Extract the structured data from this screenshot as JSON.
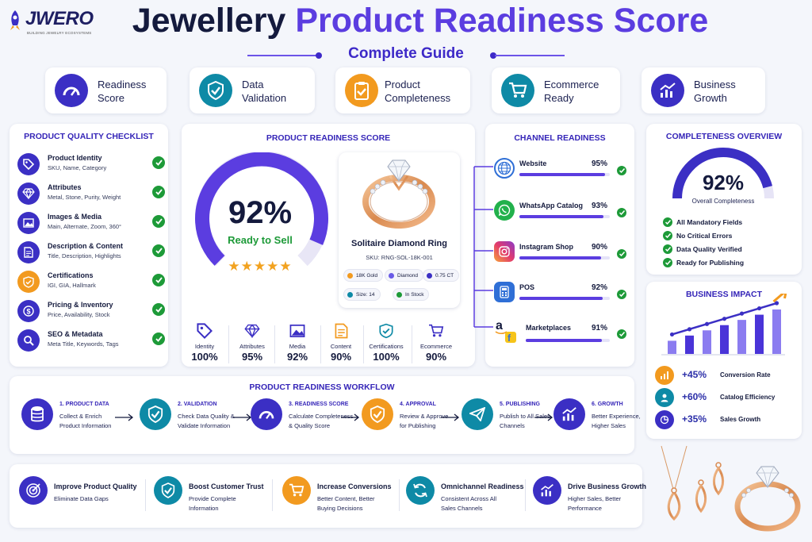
{
  "header": {
    "brand": "JWERO",
    "tagline": "BUILDING JEWELRY ECOSYSTEMS",
    "title_part1": "Jewellery",
    "title_part2": "Product Readiness Score",
    "subtitle": "Complete Guide"
  },
  "features": [
    {
      "label_line1": "Readiness",
      "label_line2": "Score",
      "icon": "gauge-icon",
      "color": "#3b2fc4"
    },
    {
      "label_line1": "Data",
      "label_line2": "Validation",
      "icon": "shield-check-icon",
      "color": "#0e8aa6"
    },
    {
      "label_line1": "Product",
      "label_line2": "Completeness",
      "icon": "clipboard-check-icon",
      "color": "#f29a1f"
    },
    {
      "label_line1": "Ecommerce",
      "label_line2": "Ready",
      "icon": "cart-icon",
      "color": "#0e8aa6"
    },
    {
      "label_line1": "Business",
      "label_line2": "Growth",
      "icon": "chart-up-icon",
      "color": "#3b2fc4"
    }
  ],
  "checklist": {
    "title": "PRODUCT QUALITY CHECKLIST",
    "items": [
      {
        "name": "Product Identity",
        "desc": "SKU, Name, Category",
        "icon": "tag-icon"
      },
      {
        "name": "Attributes",
        "desc": "Metal, Stone, Purity, Weight",
        "icon": "diamond-icon"
      },
      {
        "name": "Images & Media",
        "desc": "Main, Alternate, Zoom, 360°",
        "icon": "image-icon"
      },
      {
        "name": "Description & Content",
        "desc": "Title, Description, Highlights",
        "icon": "document-icon"
      },
      {
        "name": "Certifications",
        "desc": "IGI, GIA, Hallmark",
        "icon": "shield-icon"
      },
      {
        "name": "Pricing & Inventory",
        "desc": "Price, Availability, Stock",
        "icon": "dollar-icon"
      },
      {
        "name": "SEO & Metadata",
        "desc": "Meta Title, Keywords, Tags",
        "icon": "search-icon"
      }
    ]
  },
  "readiness": {
    "title": "PRODUCT READINESS SCORE",
    "score": "92%",
    "score_value": 92,
    "status": "Ready to Sell",
    "stars": 5,
    "product": {
      "name": "Solitaire Diamond Ring",
      "sku": "SKU: RNG-SOL-18K-001",
      "pills": [
        "18K Gold",
        "Diamond",
        "0.75 CT",
        "Size: 14",
        "In Stock"
      ]
    },
    "metrics": [
      {
        "label": "Identity",
        "value": "100%",
        "icon": "tag-icon"
      },
      {
        "label": "Attributes",
        "value": "95%",
        "icon": "diamond-icon"
      },
      {
        "label": "Media",
        "value": "92%",
        "icon": "image-icon"
      },
      {
        "label": "Content",
        "value": "90%",
        "icon": "document-icon"
      },
      {
        "label": "Certifications",
        "value": "100%",
        "icon": "shield-icon"
      },
      {
        "label": "Ecommerce",
        "value": "90%",
        "icon": "cart-icon"
      }
    ]
  },
  "channels": {
    "title": "CHANNEL READINESS",
    "items": [
      {
        "name": "Website",
        "pct": "95%",
        "value": 95,
        "icon": "globe-icon"
      },
      {
        "name": "WhatsApp Catalog",
        "pct": "93%",
        "value": 93,
        "icon": "whatsapp-icon"
      },
      {
        "name": "Instagram Shop",
        "pct": "90%",
        "value": 90,
        "icon": "instagram-icon"
      },
      {
        "name": "POS",
        "pct": "92%",
        "value": 92,
        "icon": "pos-icon"
      },
      {
        "name": "Marketplaces",
        "pct": "91%",
        "value": 91,
        "icon": "marketplace-icon"
      }
    ]
  },
  "completeness": {
    "title": "COMPLETENESS OVERVIEW",
    "score": "92%",
    "score_value": 92,
    "label": "Overall Completeness",
    "items": [
      "All Mandatory Fields",
      "No Critical Errors",
      "Data Quality Verified",
      "Ready for Publishing"
    ]
  },
  "impact": {
    "title": "BUSINESS IMPACT",
    "bars": [
      1,
      2,
      3,
      4,
      5,
      6,
      7
    ],
    "items": [
      {
        "value": "+45%",
        "label": "Conversion Rate",
        "icon": "chart-icon",
        "color": "#f29a1f"
      },
      {
        "value": "+60%",
        "label": "Catalog Efficiency",
        "icon": "user-icon",
        "color": "#0e8aa6"
      },
      {
        "value": "+35%",
        "label": "Sales Growth",
        "icon": "growth-icon",
        "color": "#3b2fc4"
      }
    ]
  },
  "workflow": {
    "title": "PRODUCT READINESS WORKFLOW",
    "steps": [
      {
        "title": "1. PRODUCT DATA",
        "l1": "Collect & Enrich",
        "l2": "Product Information",
        "icon": "database-icon",
        "color": "#3b2fc4"
      },
      {
        "title": "2. VALIDATION",
        "l1": "Check Data Quality &",
        "l2": "Validate Information",
        "icon": "shield-check-icon",
        "color": "#0e8aa6"
      },
      {
        "title": "3. READINESS SCORE",
        "l1": "Calculate Completeness",
        "l2": "& Quality Score",
        "icon": "gauge-icon",
        "color": "#3b2fc4"
      },
      {
        "title": "4. APPROVAL",
        "l1": "Review & Approve",
        "l2": "for Publishing",
        "icon": "approval-icon",
        "color": "#f29a1f"
      },
      {
        "title": "5. PUBLISHING",
        "l1": "Publish to All Sales",
        "l2": "Channels",
        "icon": "send-icon",
        "color": "#0e8aa6"
      },
      {
        "title": "6. GROWTH",
        "l1": "Better Experience,",
        "l2": "Higher Sales",
        "icon": "chart-up-icon",
        "color": "#3b2fc4"
      }
    ]
  },
  "benefits": [
    {
      "title": "Improve Product Quality",
      "l1": "Eliminate Data Gaps",
      "l2": "",
      "icon": "target-icon",
      "color": "#3b2fc4"
    },
    {
      "title": "Boost Customer Trust",
      "l1": "Provide Complete",
      "l2": "Information",
      "icon": "shield-check-icon",
      "color": "#0e8aa6"
    },
    {
      "title": "Increase Conversions",
      "l1": "Better Content, Better",
      "l2": "Buying Decisions",
      "icon": "cart-icon",
      "color": "#f29a1f"
    },
    {
      "title": "Omnichannel Readiness",
      "l1": "Consistent Across All",
      "l2": "Sales Channels",
      "icon": "sync-icon",
      "color": "#0e8aa6"
    },
    {
      "title": "Drive Business Growth",
      "l1": "Higher Sales, Better",
      "l2": "Performance",
      "icon": "chart-up-icon",
      "color": "#3b2fc4"
    }
  ]
}
